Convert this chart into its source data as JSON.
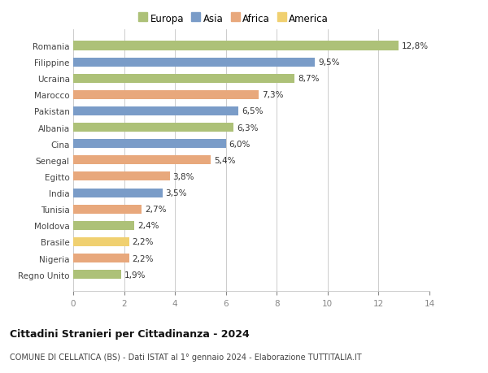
{
  "categories": [
    "Regno Unito",
    "Nigeria",
    "Brasile",
    "Moldova",
    "Tunisia",
    "India",
    "Egitto",
    "Senegal",
    "Cina",
    "Albania",
    "Pakistan",
    "Marocco",
    "Ucraina",
    "Filippine",
    "Romania"
  ],
  "values": [
    1.9,
    2.2,
    2.2,
    2.4,
    2.7,
    3.5,
    3.8,
    5.4,
    6.0,
    6.3,
    6.5,
    7.3,
    8.7,
    9.5,
    12.8
  ],
  "labels": [
    "1,9%",
    "2,2%",
    "2,2%",
    "2,4%",
    "2,7%",
    "3,5%",
    "3,8%",
    "5,4%",
    "6,0%",
    "6,3%",
    "6,5%",
    "7,3%",
    "8,7%",
    "9,5%",
    "12,8%"
  ],
  "colors": [
    "#adc178",
    "#e8a87c",
    "#f0d070",
    "#adc178",
    "#e8a87c",
    "#7a9cc8",
    "#e8a87c",
    "#e8a87c",
    "#7a9cc8",
    "#adc178",
    "#7a9cc8",
    "#e8a87c",
    "#adc178",
    "#7a9cc8",
    "#adc178"
  ],
  "legend": {
    "Europa": "#adc178",
    "Asia": "#7a9cc8",
    "Africa": "#e8a87c",
    "America": "#f0d070"
  },
  "title1": "Cittadini Stranieri per Cittadinanza - 2024",
  "title2": "COMUNE DI CELLATICA (BS) - Dati ISTAT al 1° gennaio 2024 - Elaborazione TUTTITALIA.IT",
  "xlim": [
    0,
    14
  ],
  "xticks": [
    0,
    2,
    4,
    6,
    8,
    10,
    12,
    14
  ],
  "background_color": "#ffffff",
  "plot_bg_color": "#ffffff",
  "grid_color": "#cccccc"
}
